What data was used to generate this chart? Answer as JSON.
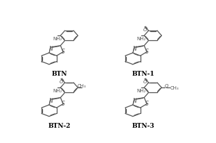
{
  "background_color": "#ffffff",
  "line_color": "#555555",
  "line_width": 0.9,
  "label_fontsize": 6.5,
  "sub_fontsize": 5.0,
  "label_color": "#000000",
  "structures": [
    {
      "name": "BTN",
      "ox": 0.08,
      "oy": 0.62,
      "has_cho": false,
      "has_me": false,
      "has_ome": false
    },
    {
      "name": "BTN-1",
      "ox": 0.58,
      "oy": 0.62,
      "has_cho": true,
      "has_me": false,
      "has_ome": false
    },
    {
      "name": "BTN-2",
      "ox": 0.08,
      "oy": 0.15,
      "has_cho": true,
      "has_me": true,
      "has_ome": false
    },
    {
      "name": "BTN-3",
      "ox": 0.58,
      "oy": 0.15,
      "has_cho": true,
      "has_me": false,
      "has_ome": true
    }
  ]
}
